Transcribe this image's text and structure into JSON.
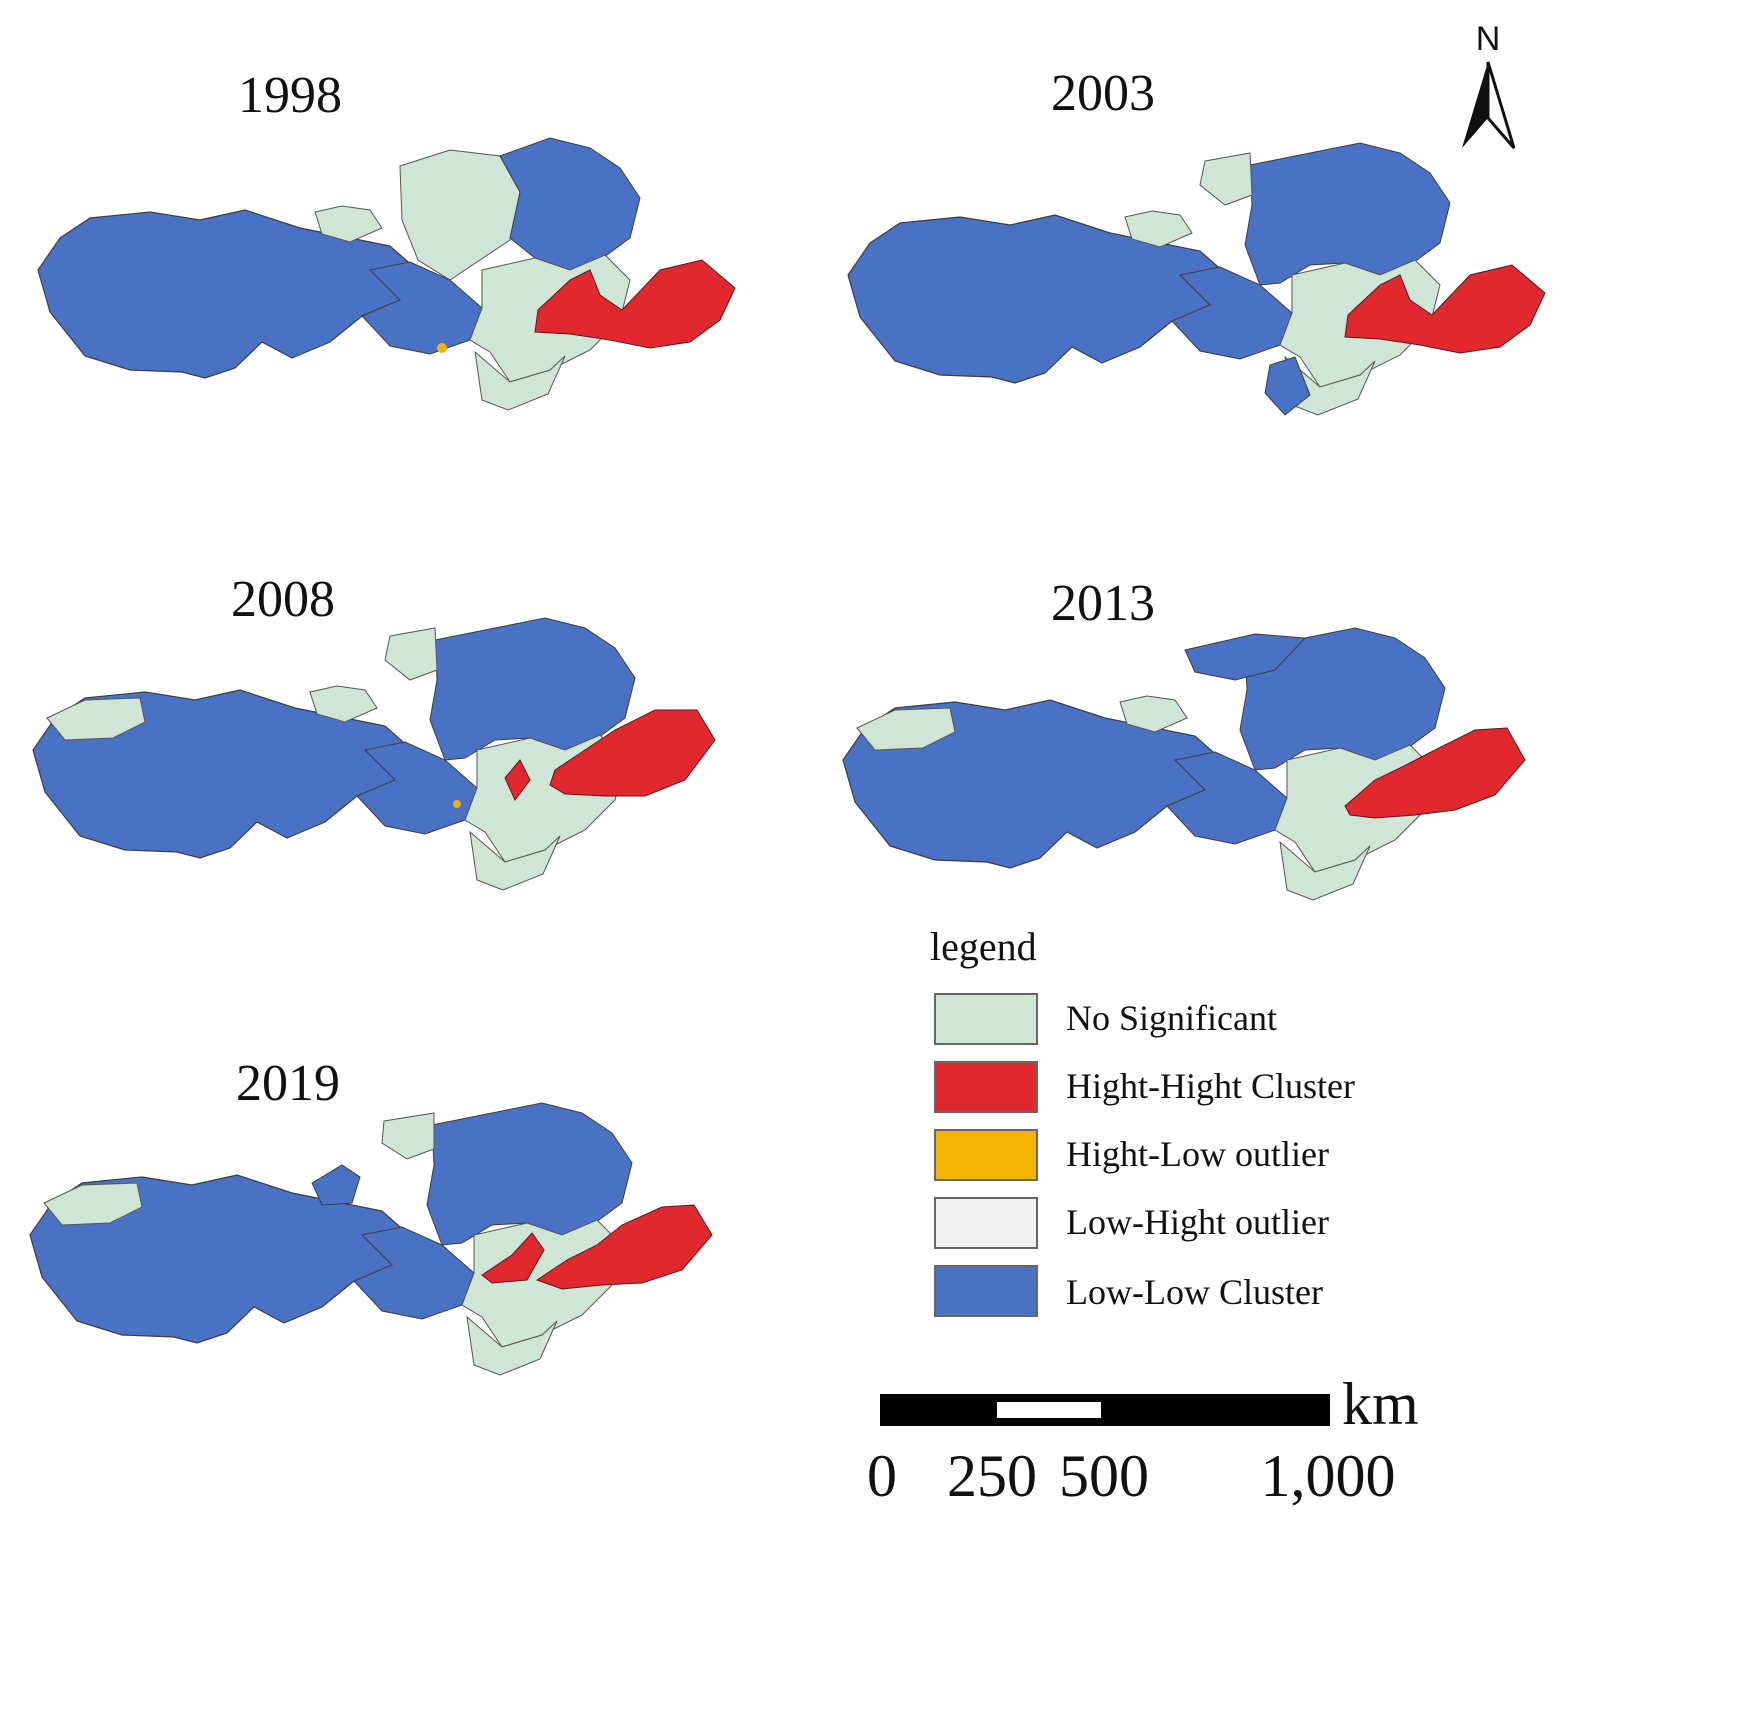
{
  "panels": [
    {
      "year": "1998"
    },
    {
      "year": "2003"
    },
    {
      "year": "2008"
    },
    {
      "year": "2013"
    },
    {
      "year": "2019"
    }
  ],
  "legend": {
    "title": "legend",
    "items": [
      {
        "label": "No  Significant",
        "color": "#cfe5d6"
      },
      {
        "label": "Hight-Hight Cluster",
        "color": "#e0282e"
      },
      {
        "label": "Hight-Low outlier",
        "color": "#f2b400"
      },
      {
        "label": "Low-Hight outlier",
        "color": "#f2f2f2"
      },
      {
        "label": "Low-Low Cluster",
        "color": "#4a72c4"
      }
    ]
  },
  "scale_bar": {
    "unit": "km",
    "ticks": [
      "0",
      "250",
      "500",
      "1,000"
    ]
  },
  "north_arrow": {
    "label": "N"
  }
}
